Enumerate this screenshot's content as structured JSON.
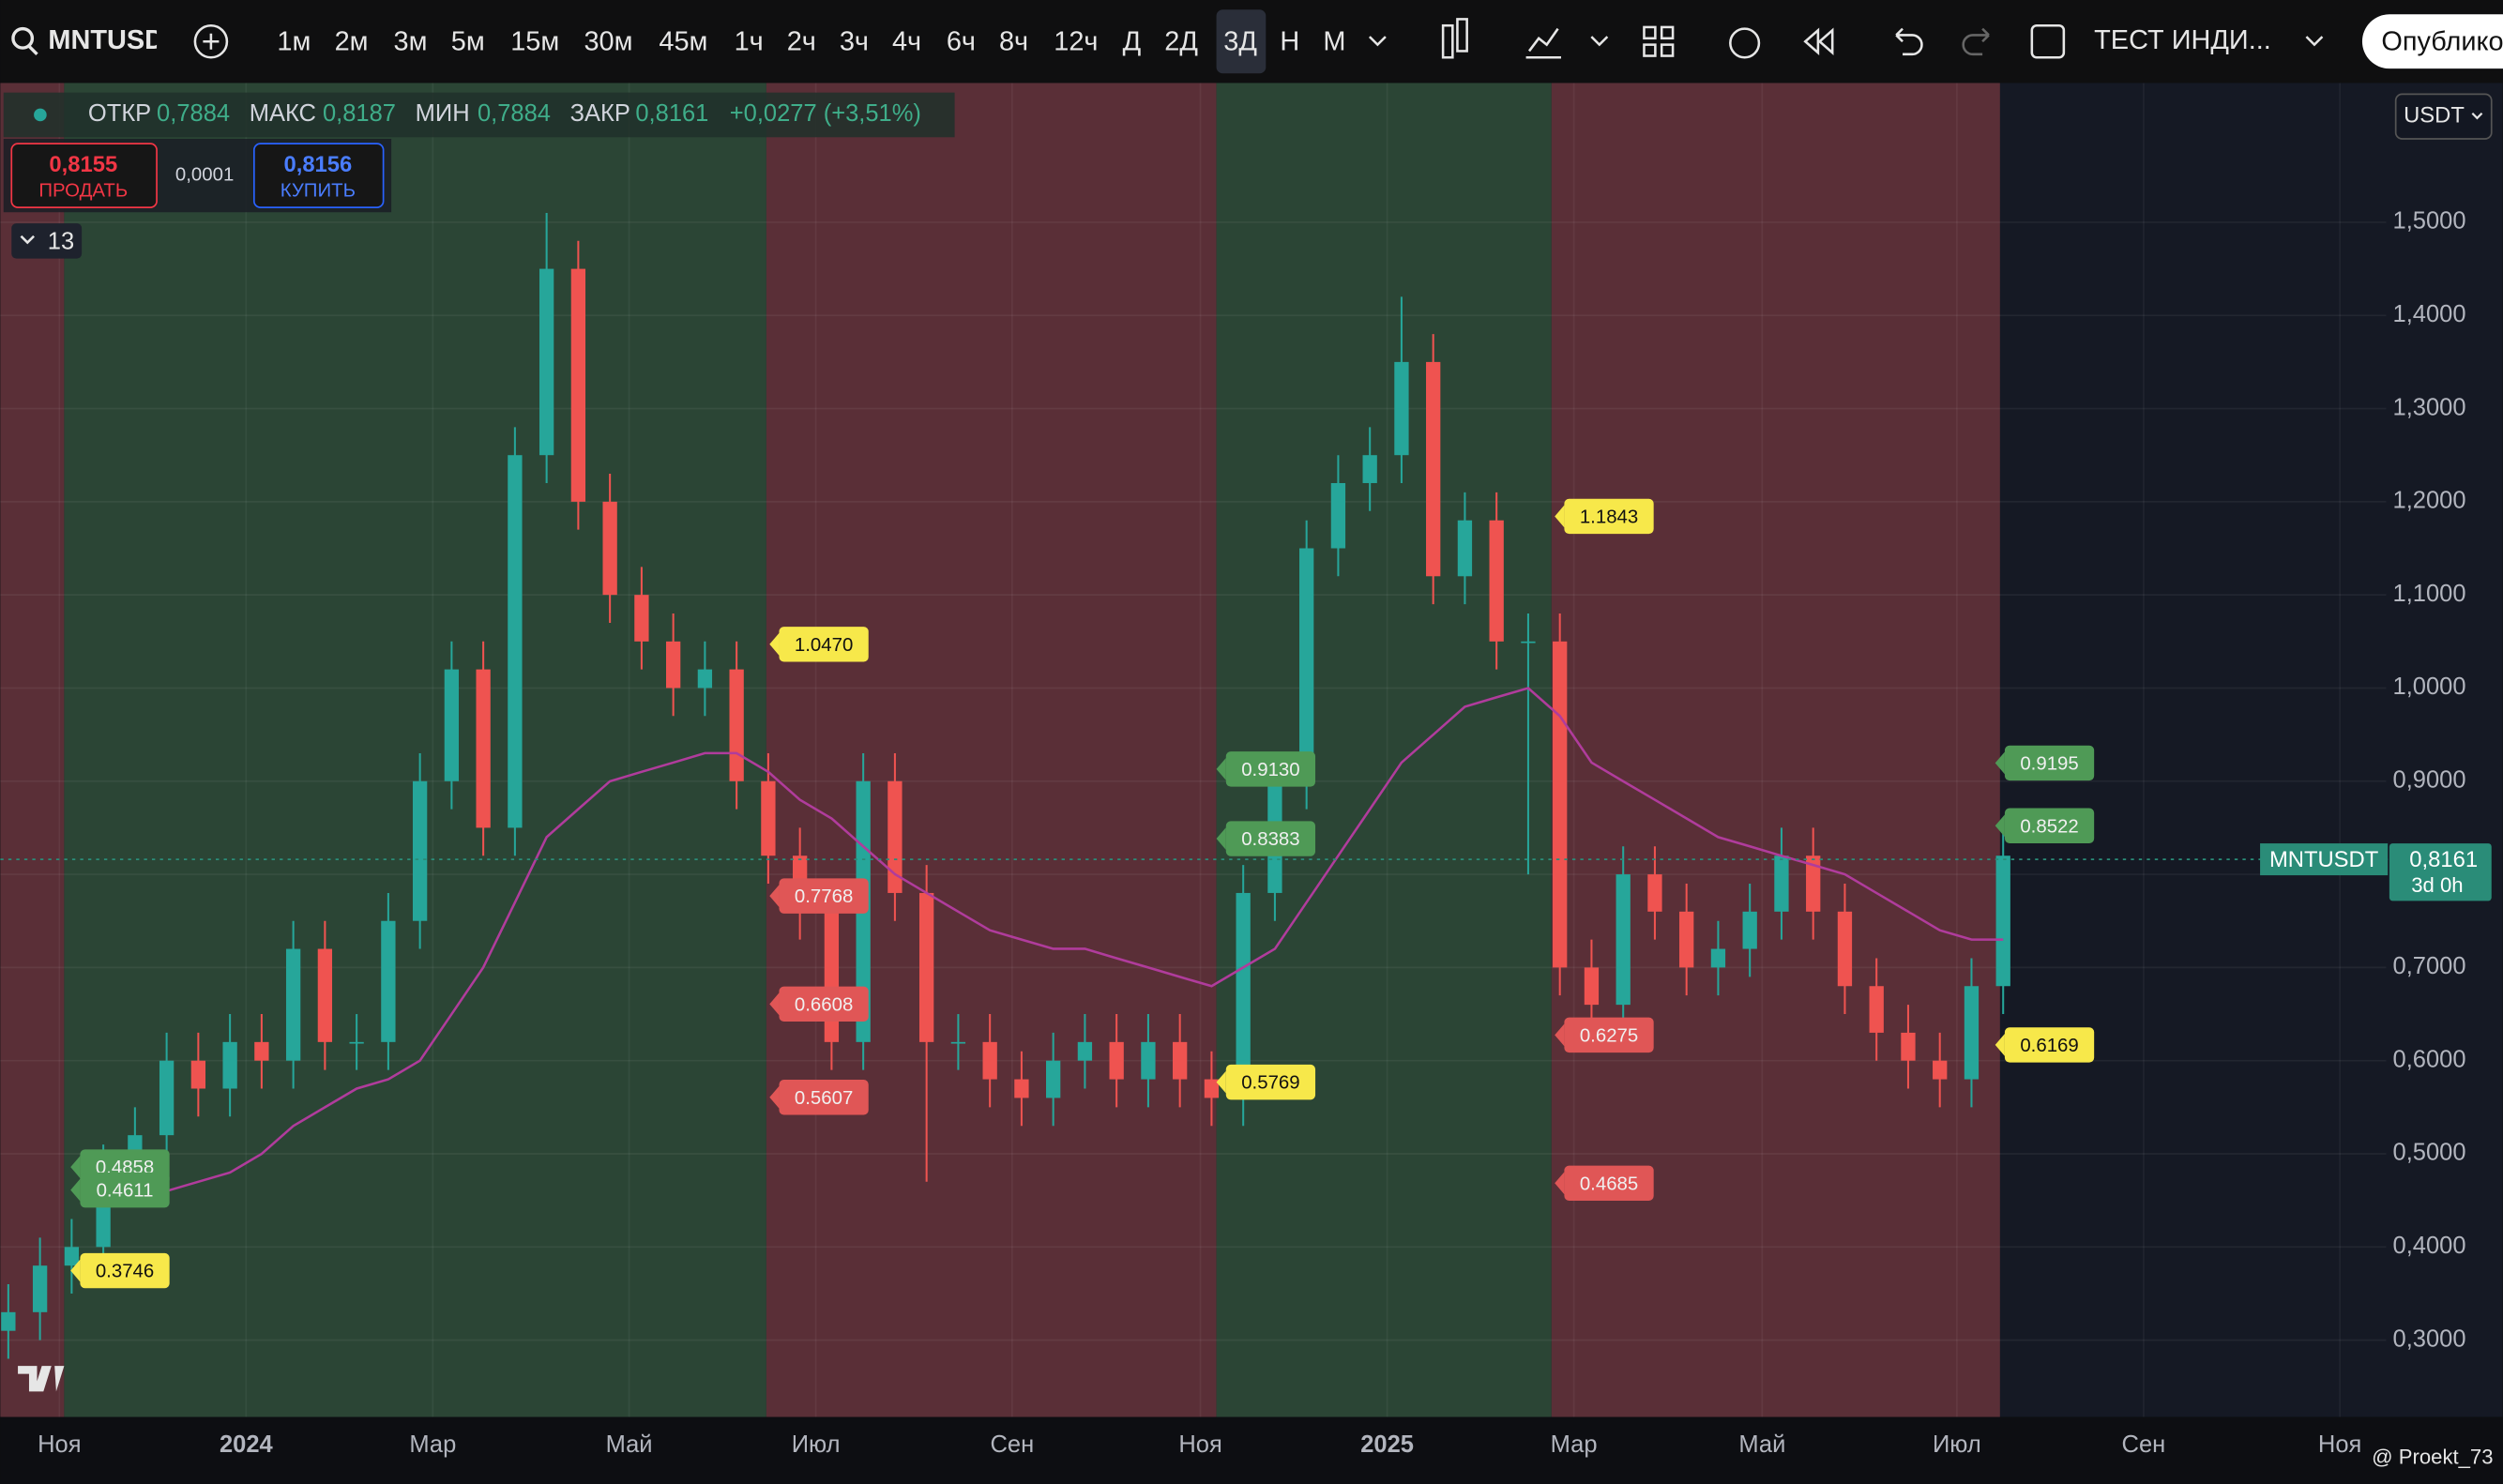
{
  "toolbar": {
    "symbol": "MNTUSDT",
    "intervals": [
      "1м",
      "2м",
      "3м",
      "5м",
      "15м",
      "30м",
      "45м",
      "1ч",
      "2ч",
      "3ч",
      "4ч",
      "6ч",
      "8ч",
      "12ч",
      "Д",
      "2Д",
      "3Д",
      "Н",
      "М"
    ],
    "indicator": "ТЕСТ ИНДИ...",
    "publish": "Опублико"
  },
  "legend": {
    "open_label": "ОТКР",
    "open": "0,7884",
    "high_label": "МАКС",
    "high": "0,8187",
    "low_label": "МИН",
    "low": "0,7884",
    "close_label": "ЗАКР",
    "close": "0,8161",
    "change": "+0,0277 (+3,51%)"
  },
  "trade": {
    "sell_price": "0,8155",
    "sell": "ПРОДАТЬ",
    "spread": "0,0001",
    "buy_price": "0,8156",
    "buy": "КУПИТЬ"
  },
  "indicators_count": "13",
  "currency": "USDT",
  "chart_data": {
    "type": "candlestick",
    "categories": [
      "Ноя",
      "2024",
      "Мар",
      "Май",
      "Июл",
      "Сен",
      "Ноя",
      "2025",
      "Мар",
      "Май",
      "Июл",
      "Сен",
      "Ноя"
    ],
    "ylim": [
      0.2175,
      1.6495
    ],
    "yticks": [
      {
        "value": 0.3,
        "label": "0,3000"
      },
      {
        "value": 0.4,
        "label": "0,4000"
      },
      {
        "value": 0.5,
        "label": "0,5000"
      },
      {
        "value": 0.6,
        "label": "0,6000"
      },
      {
        "value": 0.7,
        "label": "0,7000"
      },
      {
        "value": 0.8,
        "label": "0,8000"
      },
      {
        "value": 0.9,
        "label": "0,9000"
      },
      {
        "value": 1.0,
        "label": "1,0000"
      },
      {
        "value": 1.1,
        "label": "1,1000"
      },
      {
        "value": 1.2,
        "label": "1,2000"
      },
      {
        "value": 1.3,
        "label": "1,3000"
      },
      {
        "value": 1.4,
        "label": "1,4000"
      },
      {
        "value": 1.5,
        "label": "1,5000"
      }
    ],
    "grid": true,
    "up_color": "#26a69a",
    "down_color": "#ef5350",
    "open": [
      0.31,
      0.33,
      0.38,
      0.4,
      0.48,
      0.52,
      0.6,
      0.57,
      0.62,
      0.6,
      0.72,
      0.62,
      0.62,
      0.75,
      0.9,
      1.02,
      0.85,
      1.25,
      1.45,
      1.2,
      1.1,
      1.05,
      1.0,
      1.02,
      0.9,
      0.82,
      0.76,
      0.62,
      0.9,
      0.78,
      0.62,
      0.62,
      0.58,
      0.56,
      0.6,
      0.62,
      0.58,
      0.62,
      0.58,
      0.56,
      0.78,
      0.9,
      1.15,
      1.22,
      1.25,
      1.35,
      1.12,
      1.18,
      1.05,
      1.05,
      0.7,
      0.66,
      0.8,
      0.76,
      0.7,
      0.72,
      0.76,
      0.82,
      0.76,
      0.68,
      0.63,
      0.6,
      0.58,
      0.68
    ],
    "high": [
      0.36,
      0.41,
      0.43,
      0.51,
      0.55,
      0.63,
      0.63,
      0.65,
      0.65,
      0.75,
      0.75,
      0.65,
      0.78,
      0.93,
      1.05,
      1.05,
      1.28,
      1.51,
      1.48,
      1.23,
      1.13,
      1.08,
      1.05,
      1.05,
      0.93,
      0.85,
      0.79,
      0.93,
      0.93,
      0.81,
      0.65,
      0.65,
      0.61,
      0.63,
      0.65,
      0.65,
      0.65,
      0.65,
      0.61,
      0.81,
      0.93,
      1.18,
      1.25,
      1.28,
      1.42,
      1.38,
      1.21,
      1.21,
      1.08,
      1.08,
      0.73,
      0.83,
      0.83,
      0.79,
      0.75,
      0.79,
      0.85,
      0.85,
      0.79,
      0.71,
      0.66,
      0.63,
      0.71,
      0.85
    ],
    "low": [
      0.28,
      0.3,
      0.35,
      0.37,
      0.45,
      0.49,
      0.54,
      0.54,
      0.57,
      0.57,
      0.59,
      0.59,
      0.59,
      0.72,
      0.87,
      0.82,
      0.82,
      1.22,
      1.17,
      1.07,
      1.02,
      0.97,
      0.97,
      0.87,
      0.79,
      0.73,
      0.59,
      0.59,
      0.75,
      0.47,
      0.59,
      0.55,
      0.53,
      0.53,
      0.57,
      0.55,
      0.55,
      0.55,
      0.53,
      0.53,
      0.75,
      0.87,
      1.12,
      1.19,
      1.22,
      1.09,
      1.09,
      1.02,
      0.8,
      0.67,
      0.63,
      0.63,
      0.73,
      0.67,
      0.67,
      0.69,
      0.73,
      0.73,
      0.65,
      0.6,
      0.57,
      0.55,
      0.55,
      0.65
    ],
    "close": [
      0.33,
      0.38,
      0.4,
      0.48,
      0.52,
      0.6,
      0.57,
      0.62,
      0.6,
      0.72,
      0.62,
      0.62,
      0.75,
      0.9,
      1.02,
      0.85,
      1.25,
      1.45,
      1.2,
      1.1,
      1.05,
      1.0,
      1.02,
      0.9,
      0.82,
      0.76,
      0.62,
      0.9,
      0.78,
      0.62,
      0.62,
      0.58,
      0.56,
      0.6,
      0.62,
      0.58,
      0.62,
      0.58,
      0.56,
      0.78,
      0.9,
      1.15,
      1.22,
      1.25,
      1.35,
      1.12,
      1.18,
      1.05,
      1.05,
      0.7,
      0.66,
      0.8,
      0.76,
      0.7,
      0.72,
      0.76,
      0.82,
      0.76,
      0.68,
      0.63,
      0.6,
      0.58,
      0.68,
      0.82
    ],
    "ma": {
      "color": "#b03c9c",
      "values": [
        null,
        null,
        null,
        null,
        null,
        0.46,
        0.47,
        0.48,
        0.5,
        0.53,
        0.55,
        0.57,
        0.58,
        0.6,
        0.65,
        0.7,
        0.77,
        0.84,
        0.87,
        0.9,
        0.91,
        0.92,
        0.93,
        0.93,
        0.91,
        0.88,
        0.86,
        0.83,
        0.8,
        0.78,
        0.76,
        0.74,
        0.73,
        0.72,
        0.72,
        0.71,
        0.7,
        0.69,
        0.68,
        0.7,
        0.72,
        0.77,
        0.82,
        0.87,
        0.92,
        0.95,
        0.98,
        0.99,
        1.0,
        0.97,
        0.92,
        0.9,
        0.88,
        0.86,
        0.84,
        0.83,
        0.82,
        0.81,
        0.8,
        0.78,
        0.76,
        0.74,
        0.73,
        0.73
      ]
    },
    "annotations": [
      {
        "label": "0.3746",
        "value": 0.3746,
        "color": "#f7e84a"
      },
      {
        "label": "0.4858",
        "value": 0.4858,
        "color": "#4f9a56"
      },
      {
        "label": "0.4611",
        "value": 0.4611,
        "color": "#4f9a56"
      },
      {
        "label": "1.0470",
        "value": 1.047,
        "color": "#f7e84a"
      },
      {
        "label": "0.7768",
        "value": 0.7768,
        "color": "#e05656"
      },
      {
        "label": "0.6608",
        "value": 0.6608,
        "color": "#e05656"
      },
      {
        "label": "0.5607",
        "value": 0.5607,
        "color": "#e05656"
      },
      {
        "label": "0.9130",
        "value": 0.913,
        "color": "#4f9a56"
      },
      {
        "label": "0.8383",
        "value": 0.8383,
        "color": "#4f9a56"
      },
      {
        "label": "0.5769",
        "value": 0.5769,
        "color": "#f7e84a"
      },
      {
        "label": "1.1843",
        "value": 1.1843,
        "color": "#f7e84a"
      },
      {
        "label": "0.6275",
        "value": 0.6275,
        "color": "#e05656"
      },
      {
        "label": "0.4685",
        "value": 0.4685,
        "color": "#e05656"
      },
      {
        "label": "0.9195",
        "value": 0.9195,
        "color": "#4f9a56"
      },
      {
        "label": "0.8522",
        "value": 0.8522,
        "color": "#4f9a56"
      },
      {
        "label": "0.6169",
        "value": 0.6169,
        "color": "#f7e84a"
      }
    ],
    "price_tag": {
      "symbol": "MNTUSDT",
      "value": 0.8161,
      "label": "0,8161",
      "countdown": "3d 0h",
      "color": "#2a8c78"
    }
  },
  "watermark": "@ Proekt_73"
}
